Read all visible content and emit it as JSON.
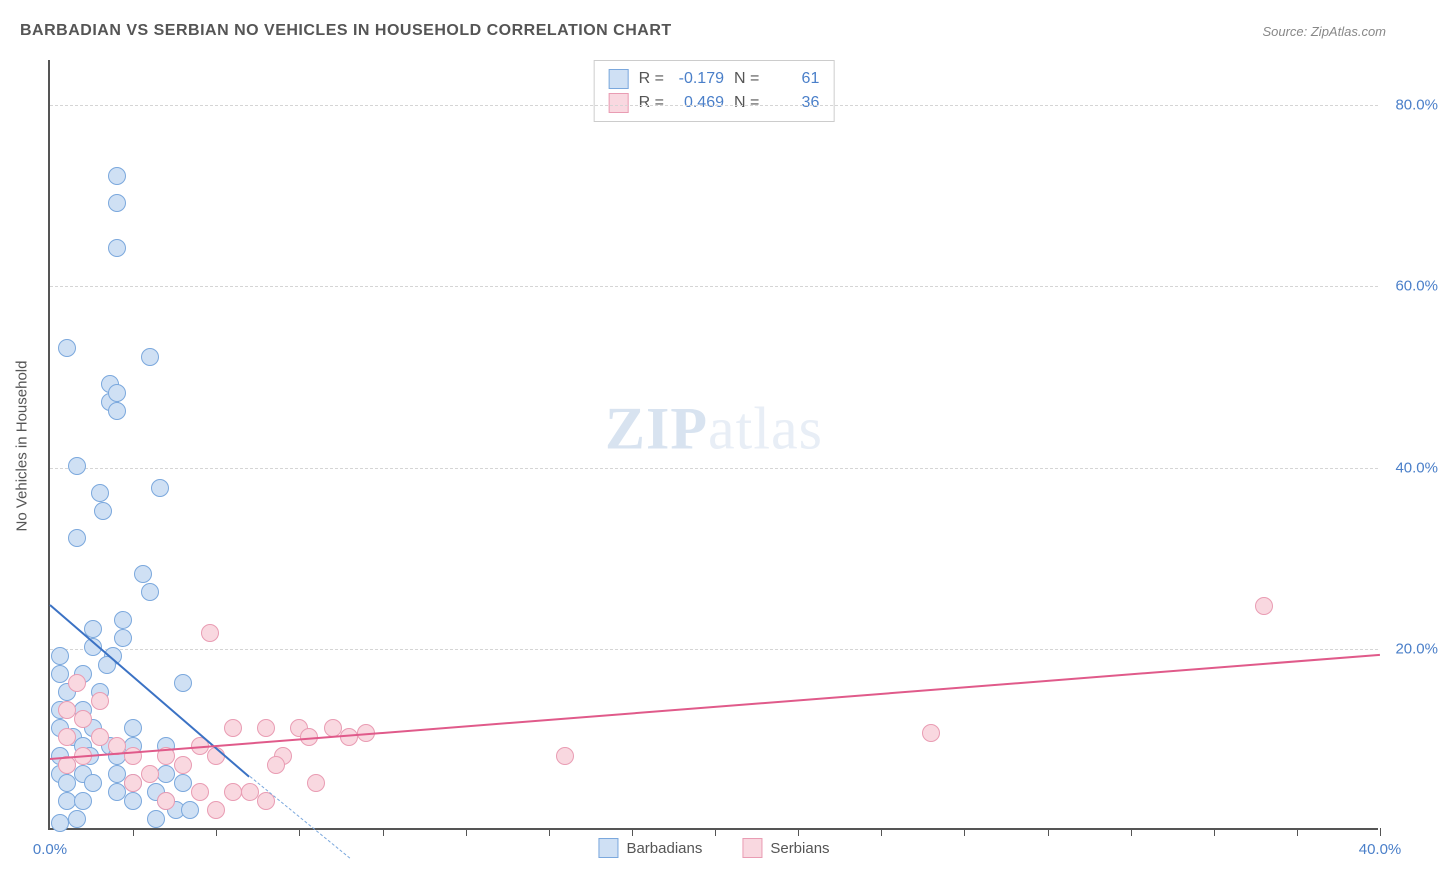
{
  "title": "BARBADIAN VS SERBIAN NO VEHICLES IN HOUSEHOLD CORRELATION CHART",
  "source": "Source: ZipAtlas.com",
  "watermark": {
    "zip": "ZIP",
    "atlas": "atlas"
  },
  "ylabel": "No Vehicles in Household",
  "chart": {
    "type": "scatter",
    "background_color": "#ffffff",
    "grid_color": "#d5d5d5",
    "axis_color": "#555555",
    "tick_label_color": "#4a7fc9",
    "label_fontsize": 15,
    "title_fontsize": 16,
    "xlim": [
      0,
      40
    ],
    "ylim": [
      0,
      85
    ],
    "y_ticks": [
      20,
      40,
      60,
      80
    ],
    "y_tick_labels": [
      "20.0%",
      "40.0%",
      "60.0%",
      "80.0%"
    ],
    "x_ticks": [
      0,
      20,
      40
    ],
    "x_tick_labels": [
      "0.0%",
      "",
      "40.0%"
    ],
    "x_minor_ticks": [
      2.5,
      5,
      7.5,
      10,
      12.5,
      15,
      17.5,
      20,
      22.5,
      25,
      27.5,
      30,
      32.5,
      35,
      37.5,
      40
    ],
    "marker_size": 18,
    "series": [
      {
        "name": "Barbadians",
        "fill": "#cfe0f4",
        "stroke": "#7ba8dd",
        "trend_color": "#3b72c4",
        "R": "-0.179",
        "N": "61",
        "trend": {
          "x1": 0,
          "y1": 25,
          "x2": 6,
          "y2": 6,
          "dash_x1": 6,
          "dash_y1": 6,
          "dash_x2": 9,
          "dash_y2": -3
        },
        "points": [
          [
            2.0,
            72
          ],
          [
            2.0,
            69
          ],
          [
            2.0,
            64
          ],
          [
            0.5,
            53
          ],
          [
            3.0,
            52
          ],
          [
            1.8,
            49
          ],
          [
            1.8,
            47
          ],
          [
            2.0,
            46
          ],
          [
            2.0,
            48
          ],
          [
            0.8,
            40
          ],
          [
            3.3,
            37.5
          ],
          [
            1.5,
            37
          ],
          [
            1.6,
            35
          ],
          [
            0.8,
            32
          ],
          [
            2.8,
            28
          ],
          [
            3.0,
            26
          ],
          [
            1.3,
            22
          ],
          [
            2.2,
            23
          ],
          [
            2.2,
            21
          ],
          [
            1.3,
            20
          ],
          [
            0.3,
            19
          ],
          [
            1.9,
            19
          ],
          [
            0.3,
            17
          ],
          [
            1.0,
            17
          ],
          [
            1.7,
            18
          ],
          [
            0.5,
            15
          ],
          [
            1.5,
            15
          ],
          [
            0.3,
            13
          ],
          [
            1.0,
            13
          ],
          [
            4.0,
            16
          ],
          [
            0.3,
            11
          ],
          [
            1.3,
            11
          ],
          [
            2.5,
            11
          ],
          [
            0.7,
            10
          ],
          [
            1.8,
            9
          ],
          [
            1.0,
            9
          ],
          [
            0.3,
            8
          ],
          [
            1.2,
            8
          ],
          [
            2.0,
            8
          ],
          [
            2.5,
            9
          ],
          [
            3.5,
            9
          ],
          [
            0.5,
            7
          ],
          [
            0.3,
            6
          ],
          [
            1.0,
            6
          ],
          [
            2.0,
            6
          ],
          [
            0.5,
            5
          ],
          [
            1.3,
            5
          ],
          [
            2.5,
            5
          ],
          [
            3.5,
            6
          ],
          [
            3.2,
            4
          ],
          [
            4.0,
            5
          ],
          [
            2.0,
            4
          ],
          [
            0.5,
            3
          ],
          [
            1.0,
            3
          ],
          [
            2.5,
            3
          ],
          [
            3.5,
            3
          ],
          [
            3.8,
            2
          ],
          [
            4.2,
            2
          ],
          [
            3.2,
            1
          ],
          [
            0.8,
            1
          ],
          [
            0.3,
            0.5
          ]
        ]
      },
      {
        "name": "Serbians",
        "fill": "#f9d8e0",
        "stroke": "#e99cb3",
        "trend_color": "#e05a8a",
        "R": "0.469",
        "N": "36",
        "trend": {
          "x1": 0,
          "y1": 8,
          "x2": 40,
          "y2": 19.5
        },
        "points": [
          [
            36.5,
            24.5
          ],
          [
            26.5,
            10.5
          ],
          [
            15.5,
            8
          ],
          [
            8.5,
            11
          ],
          [
            9.0,
            10
          ],
          [
            9.5,
            10.5
          ],
          [
            7.5,
            11
          ],
          [
            7.8,
            10
          ],
          [
            7.0,
            8
          ],
          [
            8.0,
            5
          ],
          [
            6.5,
            11
          ],
          [
            6.8,
            7
          ],
          [
            6.0,
            4
          ],
          [
            6.5,
            3
          ],
          [
            5.5,
            11
          ],
          [
            5.0,
            8
          ],
          [
            5.5,
            4
          ],
          [
            5.0,
            2
          ],
          [
            4.8,
            21.5
          ],
          [
            4.5,
            9
          ],
          [
            4.0,
            7
          ],
          [
            4.5,
            4
          ],
          [
            3.5,
            8
          ],
          [
            3.0,
            6
          ],
          [
            3.5,
            3
          ],
          [
            2.5,
            8
          ],
          [
            2.0,
            9
          ],
          [
            2.5,
            5
          ],
          [
            1.5,
            14
          ],
          [
            1.0,
            12
          ],
          [
            1.5,
            10
          ],
          [
            1.0,
            8
          ],
          [
            0.8,
            16
          ],
          [
            0.5,
            13
          ],
          [
            0.5,
            10
          ],
          [
            0.5,
            7
          ]
        ]
      }
    ],
    "stats_labels": {
      "R": "R =",
      "N": "N ="
    },
    "legend": [
      {
        "label": "Barbadians",
        "fill": "#cfe0f4",
        "stroke": "#7ba8dd"
      },
      {
        "label": "Serbians",
        "fill": "#f9d8e0",
        "stroke": "#e99cb3"
      }
    ]
  }
}
